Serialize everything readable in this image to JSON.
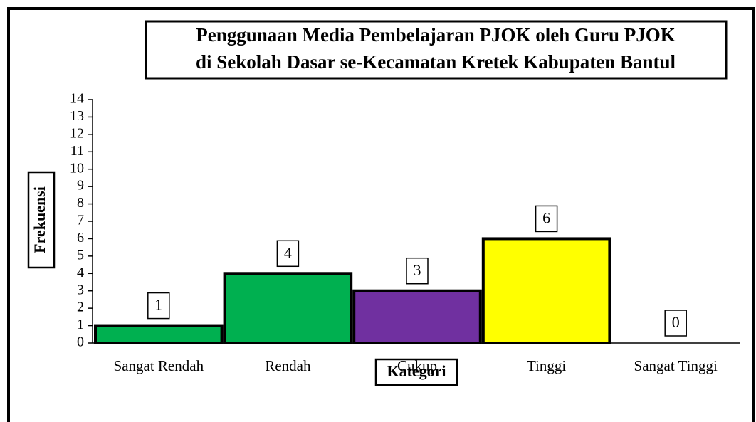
{
  "chart_data": {
    "type": "bar",
    "title": [
      "Penggunaan Media Pembelajaran PJOK oleh Guru PJOK",
      "di Sekolah Dasar se-Kecamatan Kretek Kabupaten Bantul"
    ],
    "x_label": "Kategori",
    "y_label": "Frekuensi",
    "categories": [
      "Sangat Rendah",
      "Rendah",
      "Cukup",
      "Tinggi",
      "Sangat Tinggi"
    ],
    "values": [
      1,
      4,
      3,
      6,
      0
    ],
    "colors": [
      "#00b050",
      "#00b050",
      "#7030a0",
      "#ffff00",
      "#ffffff"
    ],
    "ylim": [
      0,
      14
    ],
    "yticks": [
      0,
      1,
      2,
      3,
      4,
      5,
      6,
      7,
      8,
      9,
      10,
      11,
      12,
      13,
      14
    ]
  }
}
